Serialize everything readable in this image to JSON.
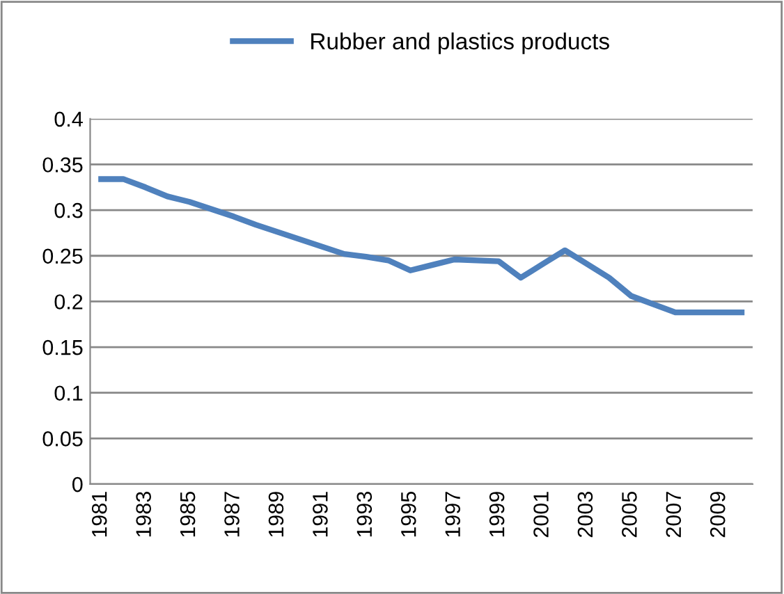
{
  "chart_data": {
    "type": "line",
    "categories": [
      "1981",
      null,
      "1983",
      null,
      "1985",
      null,
      "1987",
      null,
      "1989",
      null,
      "1991",
      null,
      "1993",
      null,
      "1995",
      null,
      "1997",
      null,
      "1999",
      null,
      "2001",
      null,
      "2003",
      null,
      "2005",
      null,
      "2007",
      null,
      "2009",
      null
    ],
    "series": [
      {
        "name": "Rubber and plastics products",
        "color": "#4f81bd",
        "values": [
          0.334,
          0.334,
          0.325,
          0.315,
          0.309,
          0.301,
          0.293,
          0.284,
          0.276,
          0.268,
          0.26,
          0.252,
          0.249,
          0.245,
          0.234,
          0.24,
          0.246,
          0.245,
          0.244,
          0.226,
          0.241,
          0.256,
          0.241,
          0.226,
          0.206,
          0.197,
          0.188,
          0.188,
          0.188,
          0.188
        ]
      }
    ],
    "ylim": [
      0,
      0.4
    ],
    "yticks": [
      0,
      0.05,
      0.1,
      0.15,
      0.2,
      0.25,
      0.3,
      0.35,
      0.4
    ],
    "grid": "y",
    "legend": "top",
    "marker": "none",
    "line_style": "solid"
  }
}
